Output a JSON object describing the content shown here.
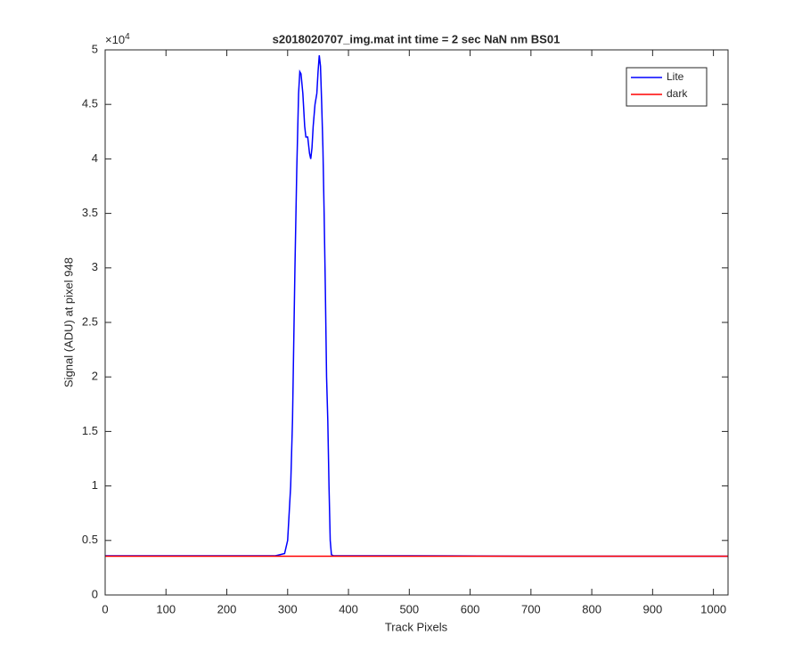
{
  "chart_data": {
    "type": "line",
    "title": "s2018020707_img.mat int time = 2 sec  NaN nm BS01",
    "x_label": "Track Pixels",
    "y_label": "Signal (ADU) at pixel 948",
    "y_multiplier": {
      "base": "×10",
      "exponent": "4"
    },
    "xlim": [
      0,
      1024
    ],
    "xticks": [
      0,
      100,
      200,
      300,
      400,
      500,
      600,
      700,
      800,
      900,
      1000
    ],
    "ylim": [
      0,
      5
    ],
    "yticks": [
      0,
      0.5,
      1,
      1.5,
      2,
      2.5,
      3,
      3.5,
      4,
      4.5,
      5
    ],
    "grid": false,
    "legend": "upper right",
    "series": [
      {
        "name": "Lite",
        "color": "#0000ff",
        "x": [
          0,
          100,
          200,
          280,
          295,
          300,
          305,
          308,
          310,
          312,
          315,
          318,
          320,
          322,
          325,
          328,
          330,
          333,
          336,
          338,
          340,
          342,
          345,
          348,
          350,
          352,
          354,
          356,
          358,
          360,
          362,
          364,
          366,
          368,
          370,
          372,
          375,
          380,
          500,
          700,
          900,
          1024
        ],
        "values": [
          0.36,
          0.36,
          0.36,
          0.36,
          0.38,
          0.5,
          1.0,
          1.6,
          2.3,
          3.0,
          3.9,
          4.6,
          4.8,
          4.78,
          4.6,
          4.3,
          4.2,
          4.2,
          4.05,
          4.0,
          4.1,
          4.3,
          4.5,
          4.6,
          4.8,
          4.95,
          4.85,
          4.5,
          4.1,
          3.5,
          2.8,
          2.0,
          1.6,
          1.0,
          0.5,
          0.37,
          0.36,
          0.36,
          0.36,
          0.355,
          0.355,
          0.355
        ]
      },
      {
        "name": "dark",
        "color": "#ff0000",
        "x": [
          0,
          1024
        ],
        "values": [
          0.355,
          0.355
        ]
      }
    ]
  }
}
